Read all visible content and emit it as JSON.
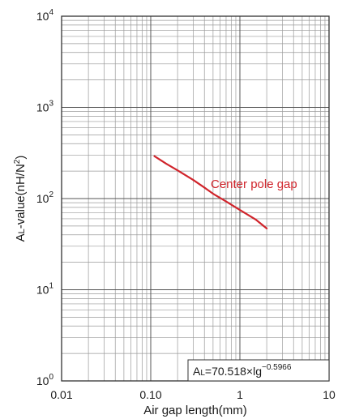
{
  "chart_data": {
    "type": "line",
    "xscale": "log",
    "yscale": "log",
    "xlim": [
      0.01,
      10
    ],
    "ylim": [
      1,
      10000
    ],
    "grid": true,
    "xlabel": "Air gap length(mm)",
    "ylabel_main": "A",
    "ylabel_sub": "L",
    "ylabel_rest": "-value(nH/N",
    "ylabel_sup": "2",
    "ylabel_close": ")",
    "x_ticks": [
      {
        "value": 0.01,
        "label": "0.01"
      },
      {
        "value": 0.1,
        "label": "0.10"
      },
      {
        "value": 1,
        "label": "1"
      },
      {
        "value": 10,
        "label": "10"
      }
    ],
    "y_ticks": [
      {
        "value": 1,
        "base": "10",
        "exp": "0"
      },
      {
        "value": 10,
        "base": "10",
        "exp": "1"
      },
      {
        "value": 100,
        "base": "10",
        "exp": "2"
      },
      {
        "value": 1000,
        "base": "10",
        "exp": "3"
      },
      {
        "value": 10000,
        "base": "10",
        "exp": "4"
      }
    ],
    "series": [
      {
        "name": "Center pole gap",
        "color": "#d0242b",
        "points": [
          [
            0.11,
            292
          ],
          [
            0.15,
            240
          ],
          [
            0.2,
            204
          ],
          [
            0.3,
            160
          ],
          [
            0.4,
            132
          ],
          [
            0.5,
            113
          ],
          [
            0.7,
            93
          ],
          [
            1.0,
            75
          ],
          [
            1.5,
            59
          ],
          [
            2.0,
            47
          ]
        ]
      }
    ],
    "formula": {
      "main": "A",
      "sub": "L",
      "rest": "=70.518×lg",
      "sup": "−0.5966"
    }
  },
  "colors": {
    "axis": "#333333",
    "grid": "#9a9a9a",
    "series": "#d0242b"
  }
}
